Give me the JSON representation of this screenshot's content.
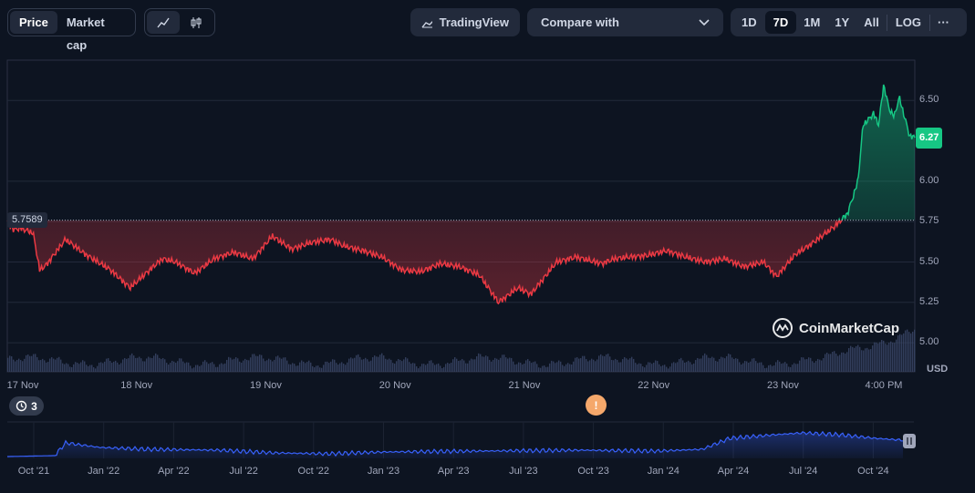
{
  "toolbar": {
    "view_tabs": [
      "Price",
      "Market cap"
    ],
    "tradingview_label": "TradingView",
    "compare_label": "Compare with",
    "ranges": [
      "1D",
      "7D",
      "1M",
      "1Y",
      "All"
    ],
    "log_label": "LOG",
    "more_label": "···"
  },
  "chart": {
    "reference_price": "5.7589",
    "current_price": "6.27",
    "currency": "USD",
    "watermark": "CoinMarketCap",
    "event_count": "3",
    "event_marker": "!",
    "colors": {
      "up": "#16c784",
      "down": "#ea3943",
      "navigator": "#3861fb",
      "volume": "#3a4566"
    }
  },
  "chart_data": {
    "type": "area",
    "title": "",
    "ylabel": "",
    "y_ticks": [
      "5.00",
      "5.25",
      "5.50",
      "5.75",
      "6.00",
      "6.50"
    ],
    "ylim": [
      4.82,
      6.75
    ],
    "baseline": 5.7589,
    "x_ticks": [
      "17 Nov",
      "18 Nov",
      "19 Nov",
      "20 Nov",
      "21 Nov",
      "22 Nov",
      "23 Nov",
      "4:00 PM"
    ],
    "xlim": [
      0,
      7.02
    ],
    "x_tick_positions": [
      0,
      1,
      2,
      3,
      4,
      5,
      6,
      6.78
    ],
    "series": [
      {
        "x": [
          0,
          0.05,
          0.1,
          0.2,
          0.25,
          0.3,
          0.45,
          0.6,
          0.8,
          0.95,
          1.1,
          1.2,
          1.3,
          1.45,
          1.6,
          1.75,
          1.9,
          2.05,
          2.2,
          2.35,
          2.5,
          2.6,
          2.75,
          2.9,
          3.05,
          3.2,
          3.35,
          3.5,
          3.65,
          3.8,
          3.95,
          4.05,
          4.15,
          4.25,
          4.4,
          4.6,
          4.7,
          4.8,
          4.95,
          5.1,
          5.25,
          5.4,
          5.55,
          5.7,
          5.85,
          5.95,
          6.1,
          6.2,
          6.3,
          6.4,
          6.5,
          6.58,
          6.62,
          6.66,
          6.7,
          6.74,
          6.78,
          6.82,
          6.86,
          6.9,
          6.94,
          6.98,
          7.02
        ],
        "y": [
          5.75,
          5.7,
          5.71,
          5.68,
          5.45,
          5.48,
          5.64,
          5.55,
          5.45,
          5.34,
          5.45,
          5.52,
          5.5,
          5.43,
          5.52,
          5.56,
          5.52,
          5.66,
          5.58,
          5.62,
          5.64,
          5.6,
          5.57,
          5.53,
          5.45,
          5.44,
          5.49,
          5.47,
          5.42,
          5.25,
          5.34,
          5.3,
          5.4,
          5.5,
          5.53,
          5.49,
          5.52,
          5.53,
          5.54,
          5.57,
          5.53,
          5.5,
          5.52,
          5.47,
          5.5,
          5.41,
          5.55,
          5.6,
          5.66,
          5.72,
          5.8,
          6.0,
          6.35,
          6.38,
          6.42,
          6.35,
          6.6,
          6.45,
          6.4,
          6.52,
          6.4,
          6.28,
          6.27
        ]
      }
    ],
    "navigator_ticks": [
      "Oct '21",
      "Jan '22",
      "Apr '22",
      "Jul '22",
      "Oct '22",
      "Jan '23",
      "Apr '23",
      "Jul '23",
      "Oct '23",
      "Jan '24",
      "Apr '24",
      "Jul '24",
      "Oct '24"
    ]
  }
}
